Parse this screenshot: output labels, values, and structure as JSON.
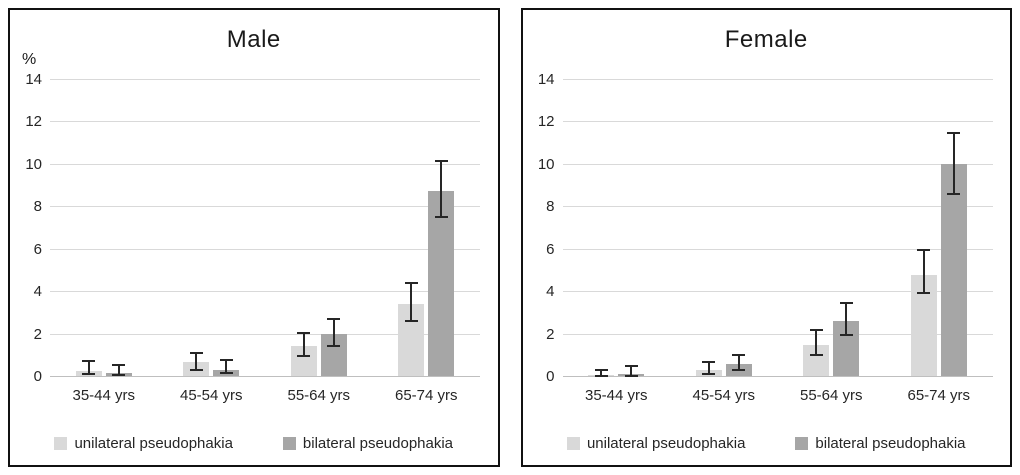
{
  "colors": {
    "unilateral": "#d9d9d9",
    "bilateral": "#a6a6a6",
    "gridline": "#d9d9d9",
    "zero_axis": "#bfbfbf",
    "error_bar": "#262626",
    "panel_border": "#111111",
    "text": "#1a1a1a"
  },
  "legend": {
    "items": [
      {
        "label": "unilateral pseudophakia",
        "color": "#d9d9d9"
      },
      {
        "label": "bilateral pseudophakia",
        "color": "#a6a6a6"
      }
    ]
  },
  "chart_data": [
    {
      "type": "bar",
      "title": "Male",
      "ylabel": "%",
      "xlabel": "",
      "ylim": [
        0,
        14
      ],
      "yticks": [
        0,
        2,
        4,
        6,
        8,
        10,
        12,
        14
      ],
      "grid": true,
      "legend_position": "bottom",
      "categories": [
        "35-44 yrs",
        "45-54 yrs",
        "55-64 yrs",
        "65-74 yrs"
      ],
      "series": [
        {
          "name": "unilateral pseudophakia",
          "color": "#d9d9d9",
          "values": [
            0.25,
            0.65,
            1.4,
            3.4
          ],
          "error_low": [
            0.1,
            0.3,
            0.95,
            2.6
          ],
          "error_high": [
            0.7,
            1.1,
            2.05,
            4.4
          ]
        },
        {
          "name": "bilateral pseudophakia",
          "color": "#a6a6a6",
          "values": [
            0.15,
            0.3,
            2.0,
            8.7
          ],
          "error_low": [
            0.05,
            0.15,
            1.4,
            7.5
          ],
          "error_high": [
            0.5,
            0.75,
            2.7,
            10.15
          ]
        }
      ]
    },
    {
      "type": "bar",
      "title": "Female",
      "ylabel": "",
      "xlabel": "",
      "ylim": [
        0,
        14
      ],
      "yticks": [
        0,
        2,
        4,
        6,
        8,
        10,
        12,
        14
      ],
      "grid": true,
      "legend_position": "bottom",
      "categories": [
        "35-44 yrs",
        "45-54 yrs",
        "55-64 yrs",
        "65-74 yrs"
      ],
      "series": [
        {
          "name": "unilateral pseudophakia",
          "color": "#d9d9d9",
          "values": [
            0.05,
            0.3,
            1.45,
            4.75
          ],
          "error_low": [
            0.0,
            0.1,
            1.0,
            3.9
          ],
          "error_high": [
            0.3,
            0.65,
            2.15,
            5.95
          ]
        },
        {
          "name": "bilateral pseudophakia",
          "color": "#a6a6a6",
          "values": [
            0.1,
            0.55,
            2.6,
            10.0
          ],
          "error_low": [
            0.0,
            0.3,
            1.95,
            8.6
          ],
          "error_high": [
            0.45,
            1.0,
            3.45,
            11.45
          ]
        }
      ]
    }
  ]
}
